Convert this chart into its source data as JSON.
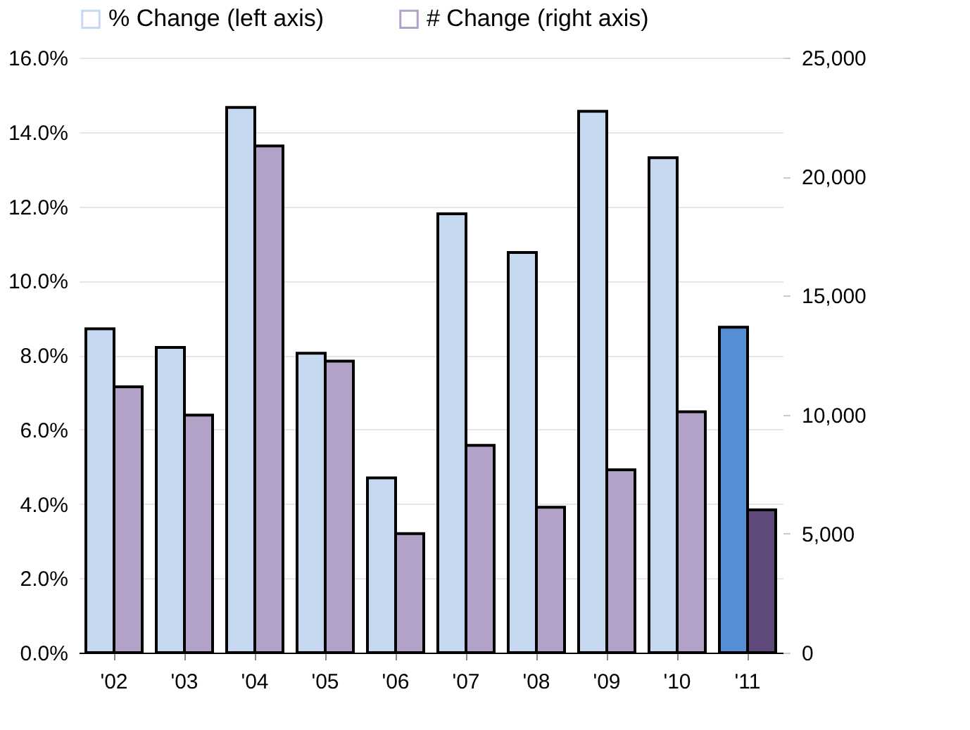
{
  "chart_data": {
    "type": "bar",
    "categories": [
      "'02",
      "'03",
      "'04",
      "'05",
      "'06",
      "'07",
      "'08",
      "'09",
      "'10",
      "'11"
    ],
    "series": [
      {
        "name": "% Change (left axis)",
        "color": "#c6d9f1",
        "colors": [
          "#c6d9f1",
          "#c6d9f1",
          "#c6d9f1",
          "#c6d9f1",
          "#c6d9f1",
          "#c6d9f1",
          "#c6d9f1",
          "#c6d9f1",
          "#c6d9f1",
          "#558ed5"
        ],
        "values": [
          8.71,
          8.21,
          14.66,
          8.05,
          4.7,
          11.8,
          10.76,
          14.56,
          13.31,
          8.75
        ]
      },
      {
        "name": "# Change (right axis)",
        "axis": "y2",
        "color": "#b3a2c7",
        "colors": [
          "#b3a2c7",
          "#b3a2c7",
          "#b3a2c7",
          "#b3a2c7",
          "#b3a2c7",
          "#b3a2c7",
          "#b3a2c7",
          "#b3a2c7",
          "#b3a2c7",
          "#604a7b"
        ],
        "values": [
          11170,
          9980,
          21290,
          12250,
          5000,
          8710,
          6110,
          7680,
          10120,
          6000
        ]
      }
    ],
    "ylim": [
      0,
      16
    ],
    "yticks": [
      {
        "value": 0,
        "label": "0.0%"
      },
      {
        "value": 2,
        "label": "2.0%"
      },
      {
        "value": 4,
        "label": "4.0%"
      },
      {
        "value": 6,
        "label": "6.0%"
      },
      {
        "value": 8,
        "label": "8.0%"
      },
      {
        "value": 10,
        "label": "10.0%"
      },
      {
        "value": 12,
        "label": "12.0%"
      },
      {
        "value": 14,
        "label": "14.0%"
      },
      {
        "value": 16,
        "label": "16.0%"
      }
    ],
    "y2lim": [
      0,
      25000
    ],
    "y2ticks": [
      0,
      {
        "value": 5000,
        "label": "5,000"
      },
      {
        "value": 10000,
        "label": "10,000"
      },
      {
        "value": 15000,
        "label": "15,000"
      },
      {
        "value": 20000,
        "label": "20,000"
      },
      {
        "value": 25000,
        "label": "25,000"
      }
    ],
    "grid": "y",
    "legend": "top"
  }
}
